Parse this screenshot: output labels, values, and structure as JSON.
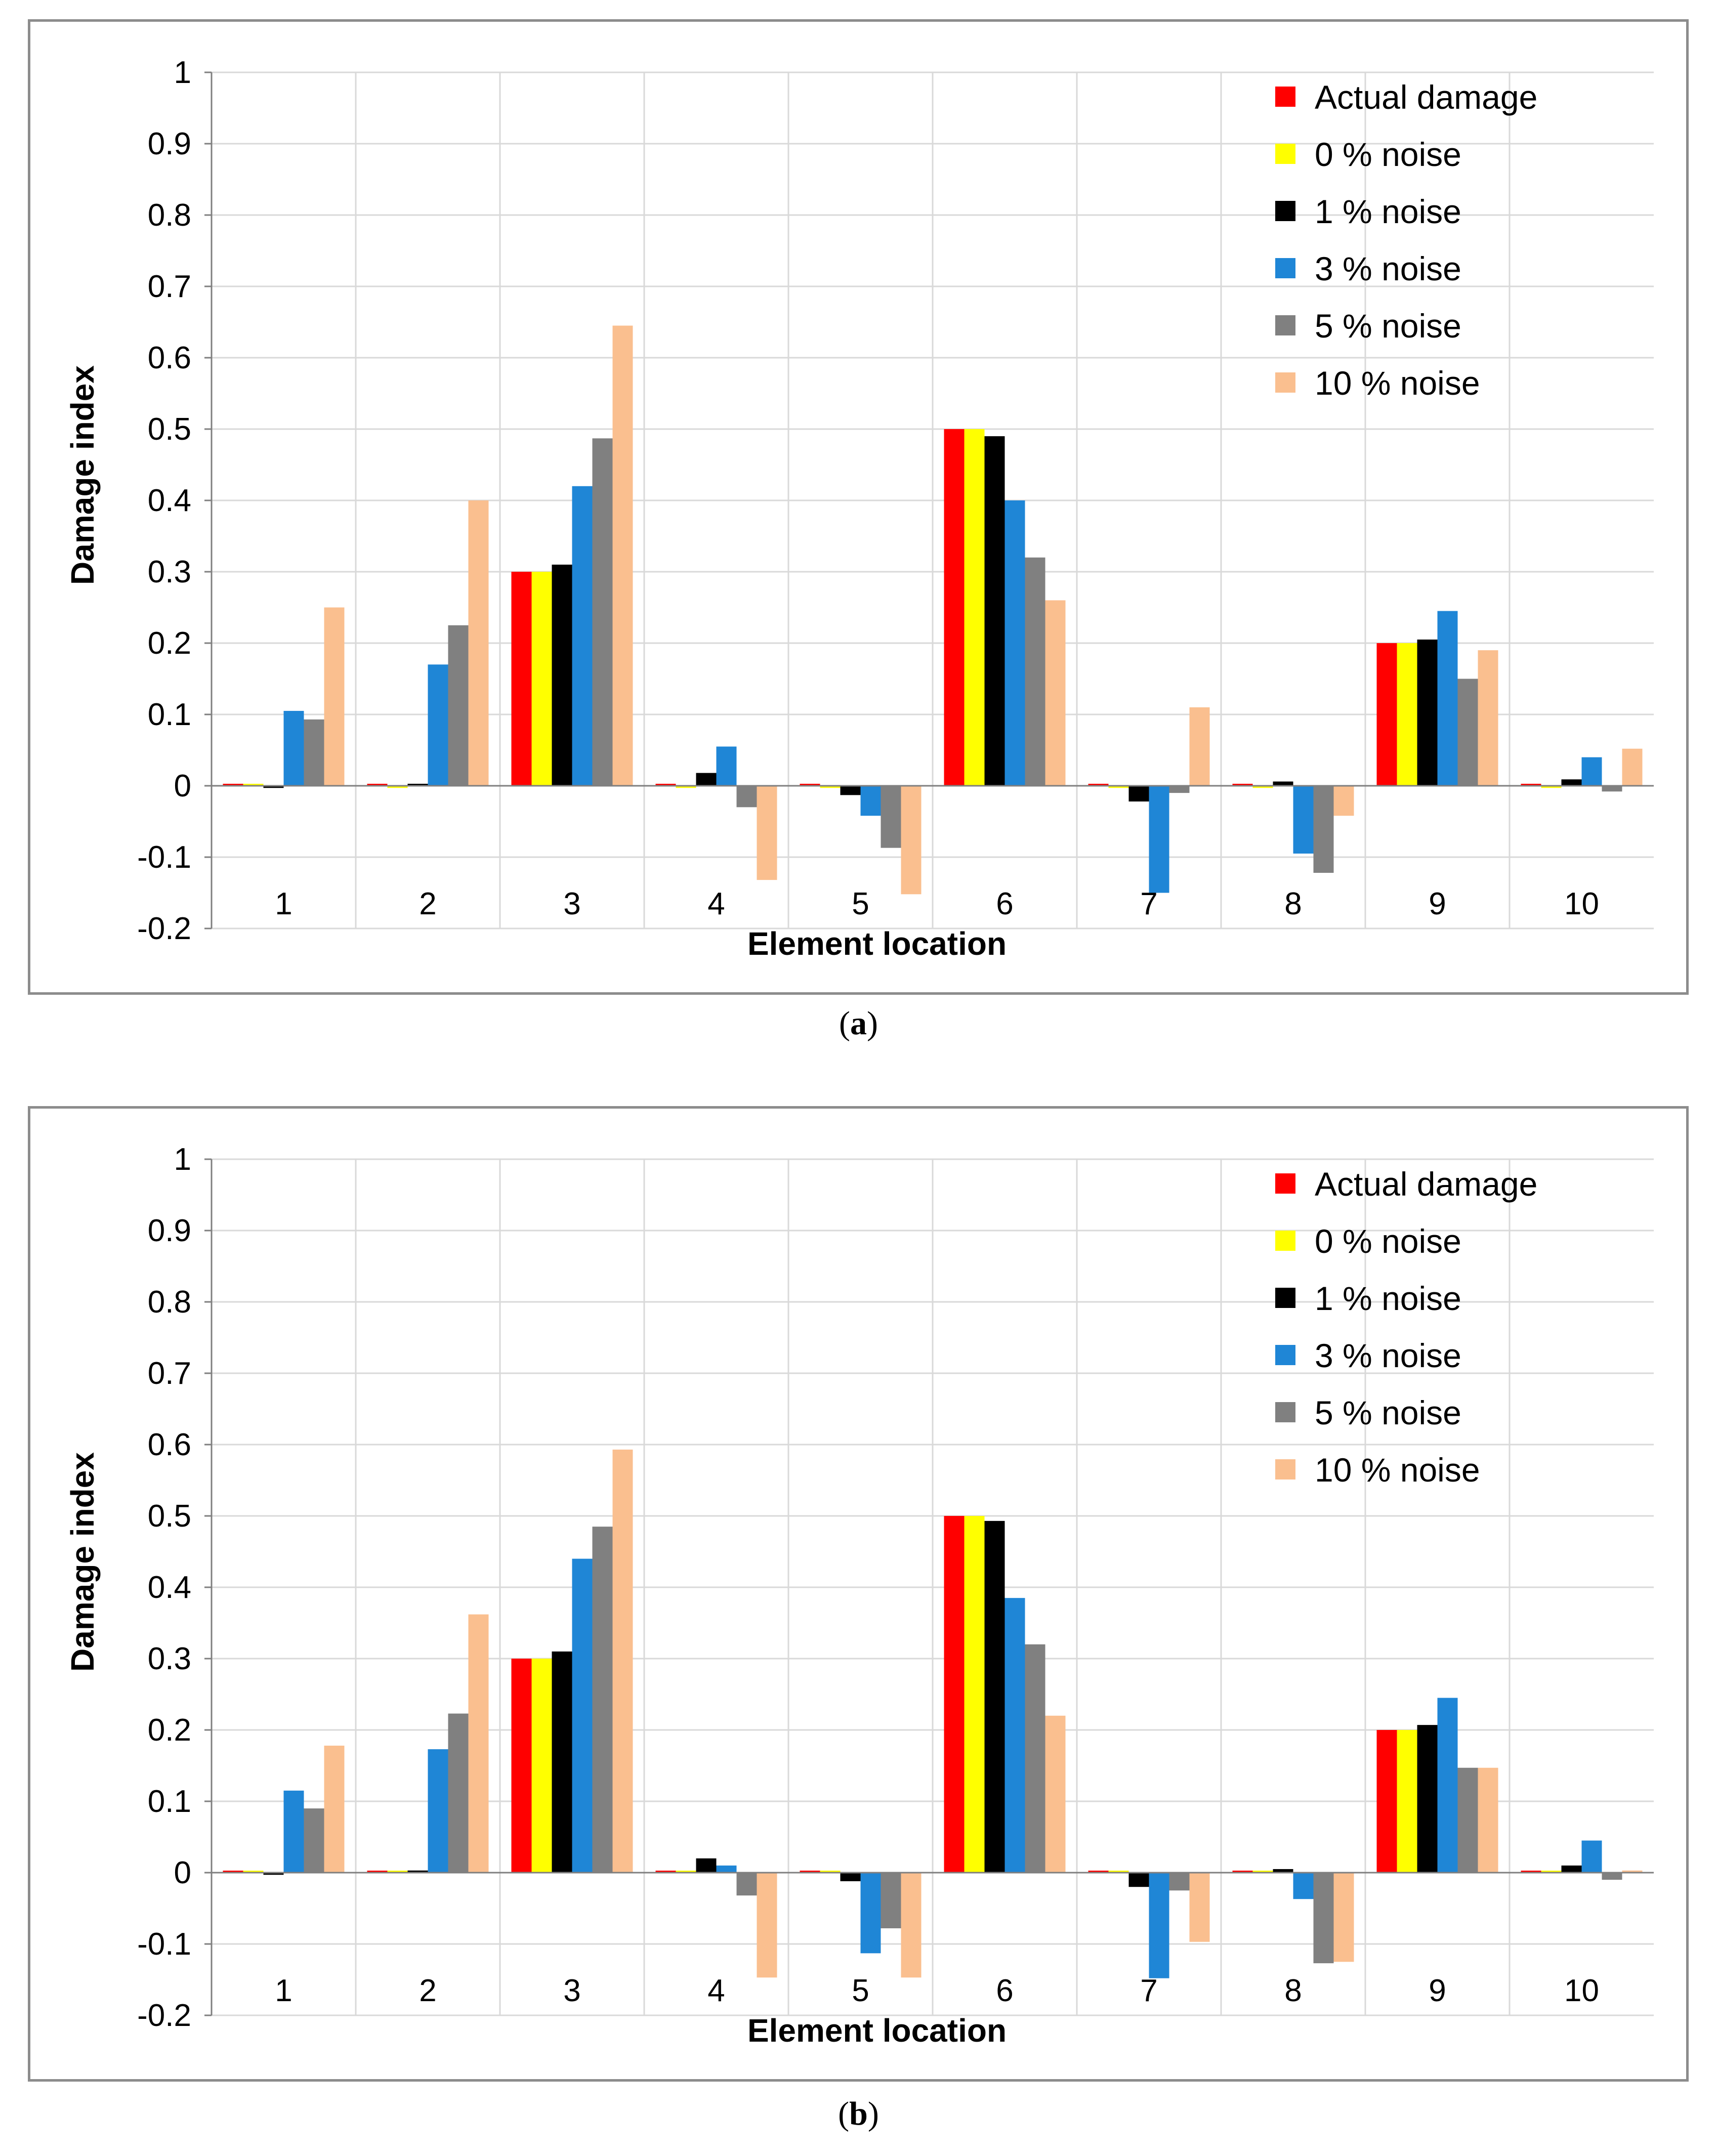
{
  "chart_data": [
    {
      "type": "bar",
      "panel_label": "a",
      "xlabel": "Element location",
      "ylabel": "Damage index",
      "ylim": [
        -0.2,
        1
      ],
      "yticks": [
        "1",
        "0.9",
        "0.8",
        "0.7",
        "0.6",
        "0.5",
        "0.4",
        "0.3",
        "0.2",
        "0.1",
        "0",
        "-0.1",
        "-0.2"
      ],
      "ytick_values": [
        1,
        0.9,
        0.8,
        0.7,
        0.6,
        0.5,
        0.4,
        0.3,
        0.2,
        0.1,
        0,
        -0.1,
        -0.2
      ],
      "grid": true,
      "legend_position": "top-right",
      "categories": [
        "1",
        "2",
        "3",
        "4",
        "5",
        "6",
        "7",
        "8",
        "9",
        "10"
      ],
      "series": [
        {
          "name": "Actual damage",
          "color": "#ff0000",
          "values": [
            0,
            0,
            0.3,
            0,
            0,
            0.5,
            0,
            0,
            0.2,
            0
          ]
        },
        {
          "name": "0 % noise",
          "color": "#ffff00",
          "values": [
            0,
            -0.003,
            0.3,
            -0.003,
            -0.003,
            0.5,
            -0.003,
            -0.003,
            0.2,
            -0.003
          ]
        },
        {
          "name": "1 % noise",
          "color": "#000000",
          "values": [
            -0.003,
            0,
            0.31,
            0.018,
            -0.013,
            0.49,
            -0.022,
            0.006,
            0.205,
            0.009
          ]
        },
        {
          "name": "3 % noise",
          "color": "#1f86d6",
          "values": [
            0.105,
            0.17,
            0.42,
            0.055,
            -0.042,
            0.4,
            -0.15,
            -0.095,
            0.245,
            0.04
          ]
        },
        {
          "name": "5 % noise",
          "color": "#808080",
          "values": [
            0.093,
            0.225,
            0.487,
            -0.03,
            -0.087,
            0.32,
            -0.01,
            -0.122,
            0.15,
            -0.008
          ]
        },
        {
          "name": "10 % noise",
          "color": "#fabf8f",
          "values": [
            0.25,
            0.4,
            0.645,
            -0.132,
            -0.152,
            0.26,
            0.11,
            -0.042,
            0.19,
            0.052
          ]
        }
      ]
    },
    {
      "type": "bar",
      "panel_label": "b",
      "xlabel": "Element location",
      "ylabel": "Damage index",
      "ylim": [
        -0.2,
        1
      ],
      "yticks": [
        "1",
        "0.9",
        "0.8",
        "0.7",
        "0.6",
        "0.5",
        "0.4",
        "0.3",
        "0.2",
        "0.1",
        "0",
        "-0.1",
        "-0.2"
      ],
      "ytick_values": [
        1,
        0.9,
        0.8,
        0.7,
        0.6,
        0.5,
        0.4,
        0.3,
        0.2,
        0.1,
        0,
        -0.1,
        -0.2
      ],
      "grid": true,
      "legend_position": "top-right",
      "categories": [
        "1",
        "2",
        "3",
        "4",
        "5",
        "6",
        "7",
        "8",
        "9",
        "10"
      ],
      "series": [
        {
          "name": "Actual damage",
          "color": "#ff0000",
          "values": [
            0,
            0,
            0.3,
            0,
            0,
            0.5,
            0,
            0,
            0.2,
            0
          ]
        },
        {
          "name": "0 % noise",
          "color": "#ffff00",
          "values": [
            0,
            0,
            0.3,
            0,
            0,
            0.5,
            0,
            0,
            0.2,
            0
          ]
        },
        {
          "name": "1 % noise",
          "color": "#000000",
          "values": [
            -0.003,
            0.003,
            0.31,
            0.02,
            -0.012,
            0.493,
            -0.02,
            0.005,
            0.207,
            0.01
          ]
        },
        {
          "name": "3 % noise",
          "color": "#1f86d6",
          "values": [
            0.115,
            0.173,
            0.44,
            0.01,
            -0.113,
            0.385,
            -0.148,
            -0.037,
            0.245,
            0.045
          ]
        },
        {
          "name": "5 % noise",
          "color": "#808080",
          "values": [
            0.09,
            0.223,
            0.485,
            -0.032,
            -0.078,
            0.32,
            -0.025,
            -0.127,
            0.147,
            -0.01
          ]
        },
        {
          "name": "10 % noise",
          "color": "#fabf8f",
          "values": [
            0.178,
            0.362,
            0.593,
            -0.147,
            -0.147,
            0.22,
            -0.097,
            -0.125,
            0.147,
            0.003
          ]
        }
      ]
    }
  ],
  "captions": {
    "a": "a",
    "b": "b"
  }
}
